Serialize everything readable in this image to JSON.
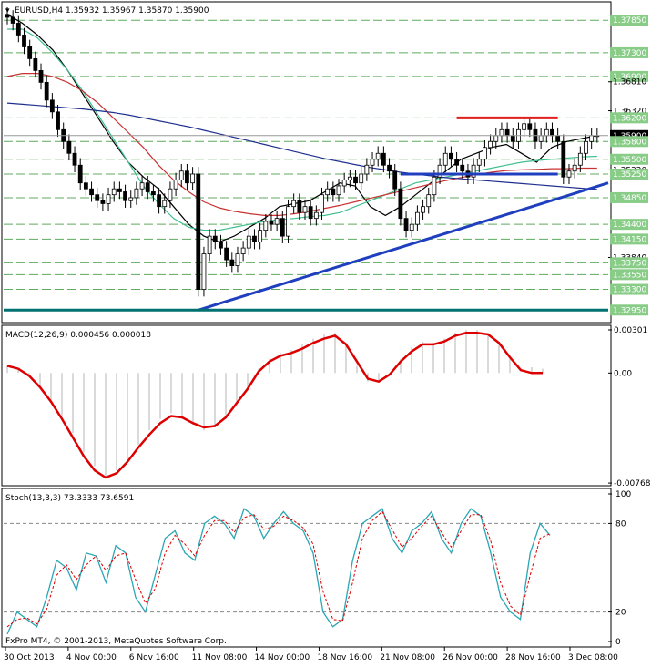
{
  "header": {
    "main_info": "EURUSD,H4  1.35932 1.35967 1.35870 1.35900",
    "macd_info": "MACD(12,26,9) 0.000456 0.000018",
    "stoch_info": "Stoch(13,3,3) 73.3333 73.6591",
    "copyright": "FxPro MT4, © 2001-2013, MetaQuotes Software Corp."
  },
  "colors": {
    "background": "#ffffff",
    "candle": "#000000",
    "ma_green": "#3fbf8f",
    "ma_red": "#c83232",
    "ma_navy": "#1f2f8f",
    "ma_black": "#000000",
    "trendline": "#1f3fbf",
    "support_line": "#1f3fbf",
    "resistance_line": "#e02020",
    "macd_line": "#dd0000",
    "macd_hist": "#b4b4b4",
    "stoch_main": "#2aa6b5",
    "stoch_signal": "#dd0000",
    "grid_dashed": "#5faa5f",
    "label_bg": "#88cc88",
    "current_label_bg": "#000000",
    "bottom_line": "#007070"
  },
  "chart_data": [
    {
      "type": "candlestick",
      "title": "EURUSD,H4",
      "symbol": "EURUSD",
      "timeframe": "H4",
      "last": {
        "open": 1.35932,
        "high": 1.35967,
        "low": 1.3587,
        "close": 1.359
      },
      "ylim": [
        1.328,
        1.381
      ],
      "price_labels": [
        {
          "text": "1.37850",
          "value": 1.3785,
          "style": "green"
        },
        {
          "text": "1.37300",
          "value": 1.373,
          "style": "green"
        },
        {
          "text": "1.36900",
          "value": 1.369,
          "style": "green"
        },
        {
          "text": "1.36810",
          "value": 1.3681,
          "style": "plain"
        },
        {
          "text": "1.36320",
          "value": 1.3632,
          "style": "plain"
        },
        {
          "text": "1.36200",
          "value": 1.362,
          "style": "green"
        },
        {
          "text": "1.35900",
          "value": 1.359,
          "style": "current"
        },
        {
          "text": "1.35800",
          "value": 1.358,
          "style": "green"
        },
        {
          "text": "1.35500",
          "value": 1.355,
          "style": "green"
        },
        {
          "text": "1.35320",
          "value": 1.3532,
          "style": "plain"
        },
        {
          "text": "1.35250",
          "value": 1.3525,
          "style": "green"
        },
        {
          "text": "1.34850",
          "value": 1.3485,
          "style": "green"
        },
        {
          "text": "1.34400",
          "value": 1.344,
          "style": "green"
        },
        {
          "text": "1.34150",
          "value": 1.3415,
          "style": "green"
        },
        {
          "text": "1.33840",
          "value": 1.3384,
          "style": "plain"
        },
        {
          "text": "1.33750",
          "value": 1.3375,
          "style": "green"
        },
        {
          "text": "1.33550",
          "value": 1.3355,
          "style": "green"
        },
        {
          "text": "1.33300",
          "value": 1.333,
          "style": "green"
        },
        {
          "text": "1.32950",
          "value": 1.3295,
          "style": "green"
        }
      ],
      "time_labels": [
        "30 Oct 2013",
        "4 Nov 00:00",
        "6 Nov 16:00",
        "11 Nov 08:00",
        "14 Nov 00:00",
        "18 Nov 16:00",
        "21 Nov 08:00",
        "26 Nov 00:00",
        "28 Nov 16:00",
        "3 Dec 08:00"
      ],
      "closes": [
        1.379,
        1.378,
        1.376,
        1.374,
        1.372,
        1.37,
        1.368,
        1.365,
        1.363,
        1.36,
        1.358,
        1.356,
        1.354,
        1.351,
        1.35,
        1.349,
        1.348,
        1.3475,
        1.349,
        1.35,
        1.3495,
        1.348,
        1.3485,
        1.35,
        1.351,
        1.3495,
        1.349,
        1.347,
        1.348,
        1.35,
        1.3515,
        1.353,
        1.351,
        1.3525,
        1.333,
        1.339,
        1.342,
        1.341,
        1.34,
        1.338,
        1.337,
        1.339,
        1.34,
        1.342,
        1.341,
        1.343,
        1.3445,
        1.344,
        1.345,
        1.342,
        1.347,
        1.348,
        1.346,
        1.347,
        1.345,
        1.346,
        1.349,
        1.35,
        1.349,
        1.3505,
        1.3515,
        1.352,
        1.351,
        1.3525,
        1.354,
        1.355,
        1.356,
        1.354,
        1.353,
        1.35,
        1.345,
        1.343,
        1.344,
        1.346,
        1.347,
        1.349,
        1.352,
        1.354,
        1.356,
        1.355,
        1.354,
        1.353,
        1.352,
        1.354,
        1.355,
        1.357,
        1.358,
        1.359,
        1.36,
        1.359,
        1.358,
        1.36,
        1.361,
        1.36,
        1.358,
        1.359,
        1.36,
        1.359,
        1.358,
        1.352,
        1.353,
        1.354,
        1.356,
        1.358,
        1.359,
        1.359
      ],
      "moving_averages": [
        {
          "color": "ma_black",
          "values": [
            1.3795,
            1.378,
            1.376,
            1.3735,
            1.37,
            1.366,
            1.362,
            1.358,
            1.3545,
            1.352,
            1.35,
            1.347,
            1.344,
            1.342,
            1.341,
            1.342,
            1.3435,
            1.345,
            1.347,
            1.3475,
            1.348,
            1.3495,
            1.351,
            1.3505,
            1.347,
            1.3455,
            1.347,
            1.349,
            1.351,
            1.353,
            1.355,
            1.356,
            1.357,
            1.3575,
            1.356,
            1.3545,
            1.357,
            1.358,
            1.3585,
            1.359
          ]
        },
        {
          "color": "ma_green",
          "values": [
            1.377,
            1.377,
            1.3755,
            1.373,
            1.37,
            1.3665,
            1.3625,
            1.3585,
            1.3545,
            1.3505,
            1.3475,
            1.345,
            1.3435,
            1.343,
            1.343,
            1.3435,
            1.344,
            1.3445,
            1.3448,
            1.345,
            1.3453,
            1.3455,
            1.346,
            1.347,
            1.348,
            1.349,
            1.35,
            1.351,
            1.3515,
            1.352,
            1.3525,
            1.353,
            1.3535,
            1.354,
            1.3545,
            1.3548,
            1.355,
            1.3552,
            1.3554,
            1.3555
          ]
        },
        {
          "color": "ma_red",
          "values": [
            1.369,
            1.3695,
            1.3695,
            1.369,
            1.368,
            1.3665,
            1.3645,
            1.362,
            1.3595,
            1.357,
            1.354,
            1.3515,
            1.3495,
            1.3478,
            1.3468,
            1.3462,
            1.3458,
            1.3455,
            1.3455,
            1.3458,
            1.3462,
            1.3467,
            1.3472,
            1.3478,
            1.3484,
            1.349,
            1.3496,
            1.3502,
            1.3508,
            1.3514,
            1.3519,
            1.3524,
            1.3528,
            1.3531,
            1.3532,
            1.3533,
            1.3534,
            1.3534,
            1.3535,
            1.3535
          ]
        },
        {
          "color": "ma_navy",
          "values": [
            1.3645,
            1.3643,
            1.3641,
            1.3639,
            1.3637,
            1.3635,
            1.3632,
            1.3629,
            1.3625,
            1.362,
            1.3615,
            1.361,
            1.3605,
            1.3599,
            1.3593,
            1.3587,
            1.3581,
            1.3575,
            1.3569,
            1.3563,
            1.3557,
            1.3551,
            1.3546,
            1.3541,
            1.3536,
            1.3532,
            1.3528,
            1.3525,
            1.3522,
            1.3519,
            1.3517,
            1.3515,
            1.3513,
            1.3511,
            1.3509,
            1.3507,
            1.3505,
            1.3503,
            1.3501,
            1.3499
          ]
        }
      ],
      "trendline": {
        "from": {
          "t": 34,
          "price": 1.3295
        },
        "to": {
          "t": 107,
          "price": 1.351
        }
      },
      "resistance": {
        "from_t": 80,
        "to_t": 98,
        "price": 1.362
      },
      "support": {
        "from_t": 70,
        "to_t": 98,
        "price": 1.3525
      }
    },
    {
      "type": "macd_histogram",
      "title": "MACD(12,26,9)",
      "main": 0.000456,
      "signal": 1.8e-05,
      "ylim": [
        -0.00768,
        0.00301
      ],
      "tick_labels": [
        "0.00301",
        "0.00",
        "-0.007685"
      ],
      "histogram": [
        0.0005,
        0.0002,
        -0.0003,
        -0.001,
        -0.002,
        -0.003,
        -0.0042,
        -0.0055,
        -0.0065,
        -0.0072,
        -0.0068,
        -0.006,
        -0.005,
        -0.004,
        -0.0032,
        -0.0028,
        -0.003,
        -0.0036,
        -0.004,
        -0.0038,
        -0.003,
        -0.002,
        -0.001,
        0.0003,
        0.001,
        0.0014,
        0.0016,
        0.002,
        0.0024,
        0.0027,
        0.0028,
        0.002,
        0.0005,
        -0.0006,
        -0.0006,
        0.0,
        0.001,
        0.0018,
        0.0022,
        0.0021,
        0.0024,
        0.0028,
        0.003,
        0.003,
        0.0028,
        0.0022,
        0.001,
        0.0,
        0.0004,
        0.0003
      ],
      "signal_values": [
        0.0005,
        0.0003,
        -0.0002,
        -0.001,
        -0.002,
        -0.0032,
        -0.0045,
        -0.0058,
        -0.0068,
        -0.0073,
        -0.007,
        -0.0062,
        -0.0052,
        -0.0043,
        -0.0035,
        -0.003,
        -0.0031,
        -0.0035,
        -0.0038,
        -0.0037,
        -0.0031,
        -0.0021,
        -0.0011,
        0.0001,
        0.0008,
        0.0012,
        0.0014,
        0.0017,
        0.0021,
        0.0024,
        0.0026,
        0.002,
        0.0008,
        -0.0004,
        -0.0006,
        -0.0001,
        0.0008,
        0.0015,
        0.002,
        0.002,
        0.0022,
        0.0026,
        0.0028,
        0.0028,
        0.0027,
        0.0021,
        0.0011,
        0.0002,
        0.0,
        0.0
      ]
    },
    {
      "type": "stochastic",
      "title": "Stoch(13,3,3)",
      "main": 73.3333,
      "signal": 73.6591,
      "ylim": [
        0,
        100
      ],
      "tick_labels": [
        "100",
        "80",
        "20",
        "0"
      ],
      "levels": [
        80,
        20
      ],
      "k_values": [
        5,
        20,
        15,
        10,
        30,
        55,
        50,
        35,
        60,
        58,
        40,
        65,
        60,
        30,
        20,
        45,
        70,
        75,
        60,
        55,
        80,
        85,
        80,
        70,
        90,
        85,
        70,
        80,
        88,
        80,
        75,
        60,
        20,
        10,
        15,
        55,
        80,
        85,
        90,
        70,
        60,
        75,
        80,
        88,
        70,
        60,
        80,
        90,
        85,
        60,
        30,
        20,
        15,
        60,
        80,
        72
      ],
      "d_values": [
        10,
        15,
        16,
        12,
        22,
        45,
        52,
        42,
        52,
        58,
        48,
        58,
        60,
        42,
        26,
        36,
        60,
        72,
        66,
        58,
        72,
        82,
        82,
        74,
        84,
        86,
        76,
        78,
        85,
        82,
        77,
        66,
        34,
        15,
        14,
        40,
        70,
        82,
        88,
        76,
        64,
        70,
        78,
        85,
        74,
        64,
        75,
        86,
        86,
        68,
        40,
        24,
        18,
        45,
        70,
        73
      ]
    }
  ]
}
